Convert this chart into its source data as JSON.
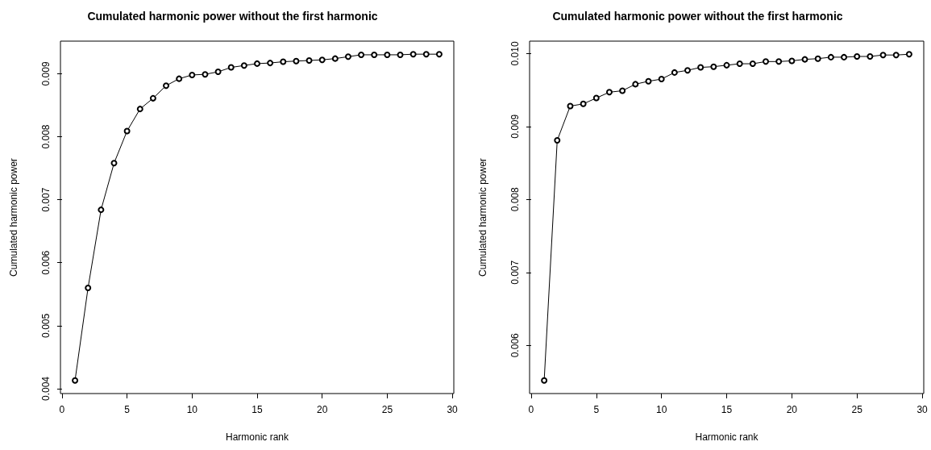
{
  "chart_data": [
    {
      "type": "line",
      "title": "Cumulated harmonic power without the first harmonic",
      "xlabel": "Harmonic rank",
      "ylabel": "Cumulated harmonic power",
      "x": [
        1,
        2,
        3,
        4,
        5,
        6,
        7,
        8,
        9,
        10,
        11,
        12,
        13,
        14,
        15,
        16,
        17,
        18,
        19,
        20,
        21,
        22,
        23,
        24,
        25,
        26,
        27,
        28,
        29
      ],
      "series": [
        {
          "color": "#000000",
          "values": [
            0.00413,
            0.0056,
            0.00684,
            0.00758,
            0.00809,
            0.00844,
            0.00861,
            0.00881,
            0.00892,
            0.00898,
            0.00899,
            0.00903,
            0.0091,
            0.00913,
            0.00916,
            0.00917,
            0.00919,
            0.0092,
            0.00921,
            0.00922,
            0.00924,
            0.00927,
            0.0093,
            0.0093,
            0.0093,
            0.0093,
            0.00931,
            0.00931,
            0.00931
          ]
        }
      ],
      "xlim": [
        -0.12,
        30.12
      ],
      "xticks": [
        0,
        5,
        10,
        15,
        20,
        25,
        30
      ],
      "ylim": [
        0.003923,
        0.009517
      ],
      "yticks": [
        0.004,
        0.005,
        0.006,
        0.007,
        0.008,
        0.009
      ],
      "marker": "circle",
      "line_style": "solid"
    },
    {
      "type": "line",
      "title": "Cumulated harmonic power without the first harmonic",
      "xlabel": "Harmonic rank",
      "ylabel": "Cumulated harmonic power",
      "x": [
        1,
        2,
        3,
        4,
        5,
        6,
        7,
        8,
        9,
        10,
        11,
        12,
        13,
        14,
        15,
        16,
        17,
        18,
        19,
        20,
        21,
        22,
        23,
        24,
        25,
        26,
        27,
        28,
        29
      ],
      "series": [
        {
          "color": "#000000",
          "values": [
            0.00552,
            0.00881,
            0.00928,
            0.00931,
            0.00939,
            0.00947,
            0.00949,
            0.00958,
            0.00962,
            0.00965,
            0.00974,
            0.00977,
            0.00981,
            0.00982,
            0.00984,
            0.00986,
            0.00986,
            0.00989,
            0.00989,
            0.0099,
            0.00992,
            0.00993,
            0.00995,
            0.00995,
            0.00996,
            0.00996,
            0.00998,
            0.00998,
            0.00999
          ]
        }
      ],
      "xlim": [
        -0.12,
        30.12
      ],
      "xticks": [
        0,
        5,
        10,
        15,
        20,
        25,
        30
      ],
      "ylim": [
        0.00534,
        0.01017
      ],
      "yticks": [
        0.006,
        0.007,
        0.008,
        0.009,
        {
          "value": 0.01,
          "label": "0.010"
        }
      ],
      "marker": "circle",
      "line_style": "solid"
    }
  ]
}
